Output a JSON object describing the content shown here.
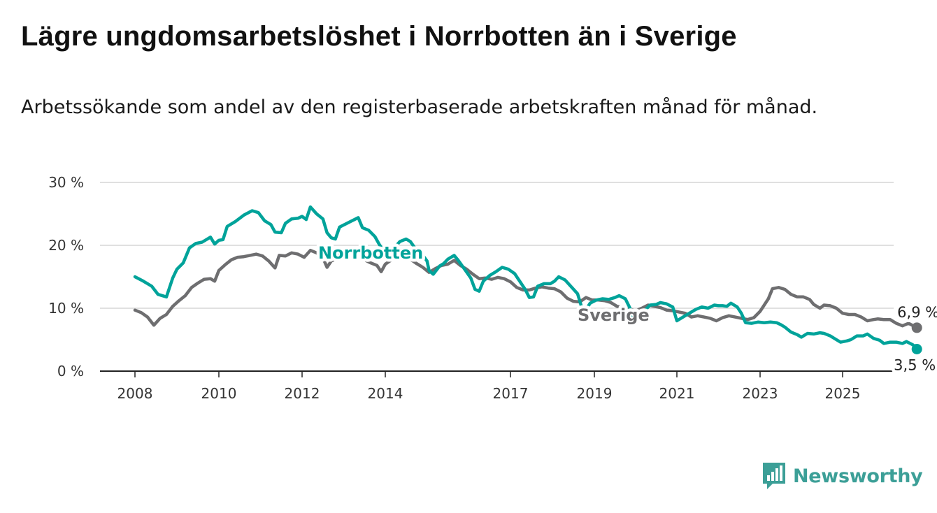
{
  "title": "Lägre ungdomsarbetslöshet i Norrbotten än i Sverige",
  "subtitle": "Arbetssökande som andel av den registerbaserade arbetskraften månad för månad.",
  "brand": {
    "name": "Newsworthy",
    "color": "#3c9f97",
    "icon": "newsworthy-logo-icon"
  },
  "colors": {
    "norrbotten": "#00a39a",
    "sverige": "#6e6e70",
    "grid": "#d6d6d6",
    "axis": "#222222"
  },
  "chart_data": {
    "type": "line",
    "title": "Lägre ungdomsarbetslöshet i Norrbotten än i Sverige",
    "xlabel": "",
    "ylabel": "",
    "ylim": [
      0,
      30
    ],
    "xlim": [
      2007.6,
      2026.2
    ],
    "x_ticks": [
      2008,
      2010,
      2012,
      2014,
      2017,
      2019,
      2021,
      2023,
      2025
    ],
    "x_tick_labels": [
      "2008",
      "2010",
      "2012",
      "2014",
      "2017",
      "2019",
      "2021",
      "2023",
      "2025"
    ],
    "y_ticks": [
      0,
      10,
      20,
      30
    ],
    "y_tick_labels": [
      "0 %",
      "10 %",
      "20 %",
      "30 %"
    ],
    "grid": true,
    "legend": "inline labels",
    "series": [
      {
        "name": "Norrbotten",
        "color": "#00a39a",
        "label": "Norrbotten",
        "end_label": "3,5 %",
        "end_value": 3.5,
        "points": [
          [
            2008.0,
            15.0
          ],
          [
            2008.2,
            14.3
          ],
          [
            2008.4,
            13.5
          ],
          [
            2008.55,
            12.2
          ],
          [
            2008.75,
            11.8
          ],
          [
            2008.9,
            14.8
          ],
          [
            2009.0,
            16.2
          ],
          [
            2009.15,
            17.2
          ],
          [
            2009.3,
            19.6
          ],
          [
            2009.45,
            20.3
          ],
          [
            2009.6,
            20.5
          ],
          [
            2009.8,
            21.3
          ],
          [
            2009.9,
            20.2
          ],
          [
            2010.0,
            20.8
          ],
          [
            2010.1,
            20.9
          ],
          [
            2010.2,
            23.0
          ],
          [
            2010.4,
            23.8
          ],
          [
            2010.6,
            24.8
          ],
          [
            2010.8,
            25.5
          ],
          [
            2010.95,
            25.2
          ],
          [
            2011.1,
            23.9
          ],
          [
            2011.25,
            23.3
          ],
          [
            2011.35,
            22.1
          ],
          [
            2011.5,
            22.0
          ],
          [
            2011.6,
            23.5
          ],
          [
            2011.75,
            24.2
          ],
          [
            2011.9,
            24.3
          ],
          [
            2012.0,
            24.6
          ],
          [
            2012.1,
            24.1
          ],
          [
            2012.2,
            26.1
          ],
          [
            2012.35,
            25.0
          ],
          [
            2012.5,
            24.2
          ],
          [
            2012.6,
            22.0
          ],
          [
            2012.7,
            21.2
          ],
          [
            2012.8,
            21.0
          ],
          [
            2012.9,
            22.9
          ],
          [
            2013.05,
            23.4
          ],
          [
            2013.2,
            23.9
          ],
          [
            2013.35,
            24.4
          ],
          [
            2013.45,
            22.8
          ],
          [
            2013.6,
            22.4
          ],
          [
            2013.75,
            21.4
          ],
          [
            2013.85,
            20.2
          ],
          [
            2014.0,
            18.7
          ],
          [
            2014.1,
            18.0
          ],
          [
            2014.2,
            19.5
          ],
          [
            2014.35,
            20.6
          ],
          [
            2014.5,
            21.0
          ],
          [
            2014.6,
            20.6
          ],
          [
            2014.75,
            19.2
          ],
          [
            2014.9,
            18.4
          ],
          [
            2015.0,
            17.5
          ],
          [
            2015.05,
            16.0
          ],
          [
            2015.15,
            15.4
          ],
          [
            2015.3,
            16.7
          ],
          [
            2015.4,
            17.1
          ],
          [
            2015.5,
            17.8
          ],
          [
            2015.65,
            18.4
          ],
          [
            2015.75,
            17.6
          ],
          [
            2015.9,
            16.2
          ],
          [
            2016.05,
            14.8
          ],
          [
            2016.15,
            13.0
          ],
          [
            2016.25,
            12.7
          ],
          [
            2016.35,
            14.3
          ],
          [
            2016.5,
            15.2
          ],
          [
            2016.65,
            15.8
          ],
          [
            2016.8,
            16.5
          ],
          [
            2016.95,
            16.2
          ],
          [
            2017.1,
            15.5
          ],
          [
            2017.2,
            14.5
          ],
          [
            2017.35,
            13.0
          ],
          [
            2017.45,
            11.7
          ],
          [
            2017.55,
            11.8
          ],
          [
            2017.65,
            13.5
          ],
          [
            2017.8,
            13.9
          ],
          [
            2017.95,
            13.9
          ],
          [
            2018.05,
            14.3
          ],
          [
            2018.15,
            15.0
          ],
          [
            2018.3,
            14.5
          ],
          [
            2018.45,
            13.4
          ],
          [
            2018.6,
            12.3
          ],
          [
            2018.7,
            10.1
          ],
          [
            2018.8,
            9.8
          ],
          [
            2018.9,
            10.8
          ],
          [
            2019.05,
            11.3
          ],
          [
            2019.2,
            11.5
          ],
          [
            2019.35,
            11.4
          ],
          [
            2019.5,
            11.7
          ],
          [
            2019.6,
            12.0
          ],
          [
            2019.75,
            11.5
          ],
          [
            2019.85,
            10.2
          ],
          [
            2019.95,
            8.6
          ],
          [
            2020.05,
            8.5
          ],
          [
            2020.2,
            9.5
          ],
          [
            2020.35,
            10.5
          ],
          [
            2020.5,
            10.6
          ],
          [
            2020.6,
            10.9
          ],
          [
            2020.75,
            10.7
          ],
          [
            2020.9,
            10.2
          ],
          [
            2021.0,
            8.0
          ],
          [
            2021.15,
            8.6
          ],
          [
            2021.3,
            9.2
          ],
          [
            2021.45,
            9.8
          ],
          [
            2021.6,
            10.2
          ],
          [
            2021.75,
            10.0
          ],
          [
            2021.9,
            10.5
          ],
          [
            2022.0,
            10.4
          ],
          [
            2022.1,
            10.4
          ],
          [
            2022.2,
            10.3
          ],
          [
            2022.3,
            10.8
          ],
          [
            2022.45,
            10.2
          ],
          [
            2022.55,
            9.2
          ],
          [
            2022.65,
            7.7
          ],
          [
            2022.8,
            7.6
          ],
          [
            2022.95,
            7.8
          ],
          [
            2023.1,
            7.7
          ],
          [
            2023.25,
            7.8
          ],
          [
            2023.4,
            7.7
          ],
          [
            2023.5,
            7.4
          ],
          [
            2023.6,
            7.0
          ],
          [
            2023.75,
            6.2
          ],
          [
            2023.9,
            5.8
          ],
          [
            2024.0,
            5.4
          ],
          [
            2024.15,
            6.0
          ],
          [
            2024.3,
            5.9
          ],
          [
            2024.45,
            6.1
          ],
          [
            2024.55,
            6.0
          ],
          [
            2024.7,
            5.6
          ],
          [
            2024.85,
            5.0
          ],
          [
            2024.95,
            4.6
          ],
          [
            2025.1,
            4.8
          ],
          [
            2025.2,
            5.0
          ],
          [
            2025.35,
            5.6
          ],
          [
            2025.5,
            5.6
          ],
          [
            2025.6,
            5.9
          ],
          [
            2025.75,
            5.2
          ],
          [
            2025.9,
            4.9
          ],
          [
            2026.0,
            4.4
          ],
          [
            2026.15,
            4.6
          ],
          [
            2026.3,
            4.6
          ],
          [
            2026.45,
            4.4
          ],
          [
            2026.55,
            4.7
          ],
          [
            2026.7,
            4.2
          ],
          [
            2026.8,
            3.5
          ]
        ]
      },
      {
        "name": "Sverige",
        "color": "#6e6e70",
        "label": "Sverige",
        "end_label": "6,9 %",
        "end_value": 6.9,
        "points": [
          [
            2008.0,
            9.7
          ],
          [
            2008.15,
            9.3
          ],
          [
            2008.3,
            8.6
          ],
          [
            2008.45,
            7.3
          ],
          [
            2008.6,
            8.4
          ],
          [
            2008.75,
            9.0
          ],
          [
            2008.9,
            10.3
          ],
          [
            2009.05,
            11.2
          ],
          [
            2009.2,
            12.0
          ],
          [
            2009.35,
            13.3
          ],
          [
            2009.5,
            14.0
          ],
          [
            2009.65,
            14.6
          ],
          [
            2009.8,
            14.7
          ],
          [
            2009.9,
            14.3
          ],
          [
            2010.0,
            16.0
          ],
          [
            2010.15,
            16.9
          ],
          [
            2010.3,
            17.7
          ],
          [
            2010.45,
            18.1
          ],
          [
            2010.6,
            18.2
          ],
          [
            2010.75,
            18.4
          ],
          [
            2010.9,
            18.6
          ],
          [
            2011.05,
            18.3
          ],
          [
            2011.2,
            17.5
          ],
          [
            2011.35,
            16.4
          ],
          [
            2011.45,
            18.4
          ],
          [
            2011.6,
            18.3
          ],
          [
            2011.75,
            18.8
          ],
          [
            2011.9,
            18.6
          ],
          [
            2012.05,
            18.1
          ],
          [
            2012.2,
            19.2
          ],
          [
            2012.35,
            18.8
          ],
          [
            2012.5,
            18.0
          ],
          [
            2012.6,
            16.5
          ],
          [
            2012.7,
            17.5
          ],
          [
            2012.8,
            17.8
          ],
          [
            2012.95,
            18.7
          ],
          [
            2013.1,
            19.0
          ],
          [
            2013.25,
            19.2
          ],
          [
            2013.4,
            18.9
          ],
          [
            2013.5,
            17.7
          ],
          [
            2013.65,
            17.2
          ],
          [
            2013.8,
            16.8
          ],
          [
            2013.9,
            15.8
          ],
          [
            2014.0,
            17.0
          ],
          [
            2014.15,
            17.7
          ],
          [
            2014.3,
            18.2
          ],
          [
            2014.45,
            18.3
          ],
          [
            2014.6,
            17.8
          ],
          [
            2014.75,
            17.1
          ],
          [
            2014.9,
            16.5
          ],
          [
            2015.05,
            15.7
          ],
          [
            2015.2,
            16.3
          ],
          [
            2015.35,
            16.8
          ],
          [
            2015.5,
            17.0
          ],
          [
            2015.65,
            17.6
          ],
          [
            2015.8,
            16.8
          ],
          [
            2015.95,
            16.2
          ],
          [
            2016.1,
            15.4
          ],
          [
            2016.25,
            14.7
          ],
          [
            2016.4,
            14.8
          ],
          [
            2016.55,
            14.6
          ],
          [
            2016.7,
            14.9
          ],
          [
            2016.85,
            14.7
          ],
          [
            2017.0,
            14.2
          ],
          [
            2017.15,
            13.3
          ],
          [
            2017.3,
            12.9
          ],
          [
            2017.45,
            12.9
          ],
          [
            2017.6,
            13.2
          ],
          [
            2017.75,
            13.4
          ],
          [
            2017.9,
            13.2
          ],
          [
            2018.05,
            13.1
          ],
          [
            2018.2,
            12.6
          ],
          [
            2018.35,
            11.6
          ],
          [
            2018.5,
            11.1
          ],
          [
            2018.65,
            11.0
          ],
          [
            2018.8,
            11.7
          ],
          [
            2018.95,
            11.3
          ],
          [
            2019.1,
            11.3
          ],
          [
            2019.25,
            11.2
          ],
          [
            2019.4,
            10.9
          ],
          [
            2019.55,
            10.3
          ],
          [
            2019.7,
            10.1
          ],
          [
            2019.85,
            9.9
          ],
          [
            2020.0,
            9.6
          ],
          [
            2020.15,
            10.0
          ],
          [
            2020.3,
            10.5
          ],
          [
            2020.45,
            10.3
          ],
          [
            2020.6,
            10.1
          ],
          [
            2020.75,
            9.7
          ],
          [
            2020.9,
            9.6
          ],
          [
            2021.05,
            9.4
          ],
          [
            2021.2,
            9.2
          ],
          [
            2021.35,
            8.6
          ],
          [
            2021.5,
            8.8
          ],
          [
            2021.65,
            8.6
          ],
          [
            2021.8,
            8.4
          ],
          [
            2021.95,
            8.0
          ],
          [
            2022.1,
            8.5
          ],
          [
            2022.25,
            8.8
          ],
          [
            2022.4,
            8.6
          ],
          [
            2022.55,
            8.4
          ],
          [
            2022.7,
            8.2
          ],
          [
            2022.85,
            8.5
          ],
          [
            2023.0,
            9.5
          ],
          [
            2023.1,
            10.5
          ],
          [
            2023.2,
            11.5
          ],
          [
            2023.3,
            13.1
          ],
          [
            2023.45,
            13.3
          ],
          [
            2023.6,
            13.0
          ],
          [
            2023.75,
            12.2
          ],
          [
            2023.9,
            11.8
          ],
          [
            2024.05,
            11.8
          ],
          [
            2024.2,
            11.4
          ],
          [
            2024.3,
            10.6
          ],
          [
            2024.45,
            10.0
          ],
          [
            2024.55,
            10.5
          ],
          [
            2024.7,
            10.4
          ],
          [
            2024.85,
            10.0
          ],
          [
            2025.0,
            9.2
          ],
          [
            2025.15,
            9.0
          ],
          [
            2025.3,
            9.0
          ],
          [
            2025.45,
            8.6
          ],
          [
            2025.6,
            8.0
          ],
          [
            2025.75,
            8.2
          ],
          [
            2025.85,
            8.3
          ],
          [
            2026.0,
            8.2
          ],
          [
            2026.15,
            8.2
          ],
          [
            2026.3,
            7.6
          ],
          [
            2026.45,
            7.2
          ],
          [
            2026.6,
            7.6
          ],
          [
            2026.8,
            6.9
          ]
        ]
      }
    ]
  }
}
